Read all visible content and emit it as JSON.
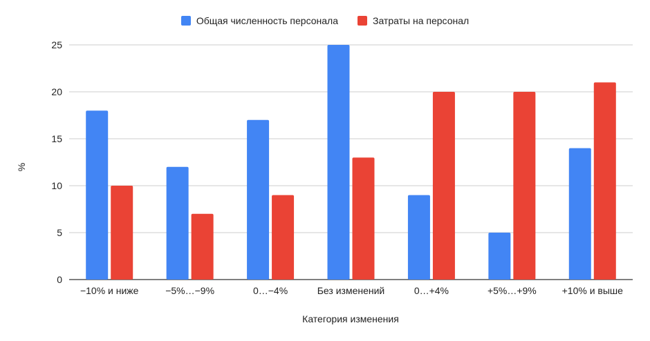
{
  "chart_data": {
    "type": "bar",
    "title": "",
    "xlabel": "Категория изменения",
    "ylabel": "%",
    "ylim": [
      0,
      25
    ],
    "yticks": [
      0,
      5,
      10,
      15,
      20,
      25
    ],
    "grid": true,
    "legend_position": "top-center",
    "categories": [
      "−10% и ниже",
      "−5%…−9%",
      "0…−4%",
      "Без изменений",
      "0…+4%",
      "+5%…+9%",
      "+10% и выше"
    ],
    "series": [
      {
        "name": "Общая численность персонала",
        "color": "#4285F4",
        "values": [
          18,
          12,
          17,
          25,
          9,
          5,
          14
        ]
      },
      {
        "name": "Затраты на персонал",
        "color": "#EA4335",
        "values": [
          10,
          7,
          9,
          13,
          20,
          20,
          21
        ]
      }
    ]
  }
}
